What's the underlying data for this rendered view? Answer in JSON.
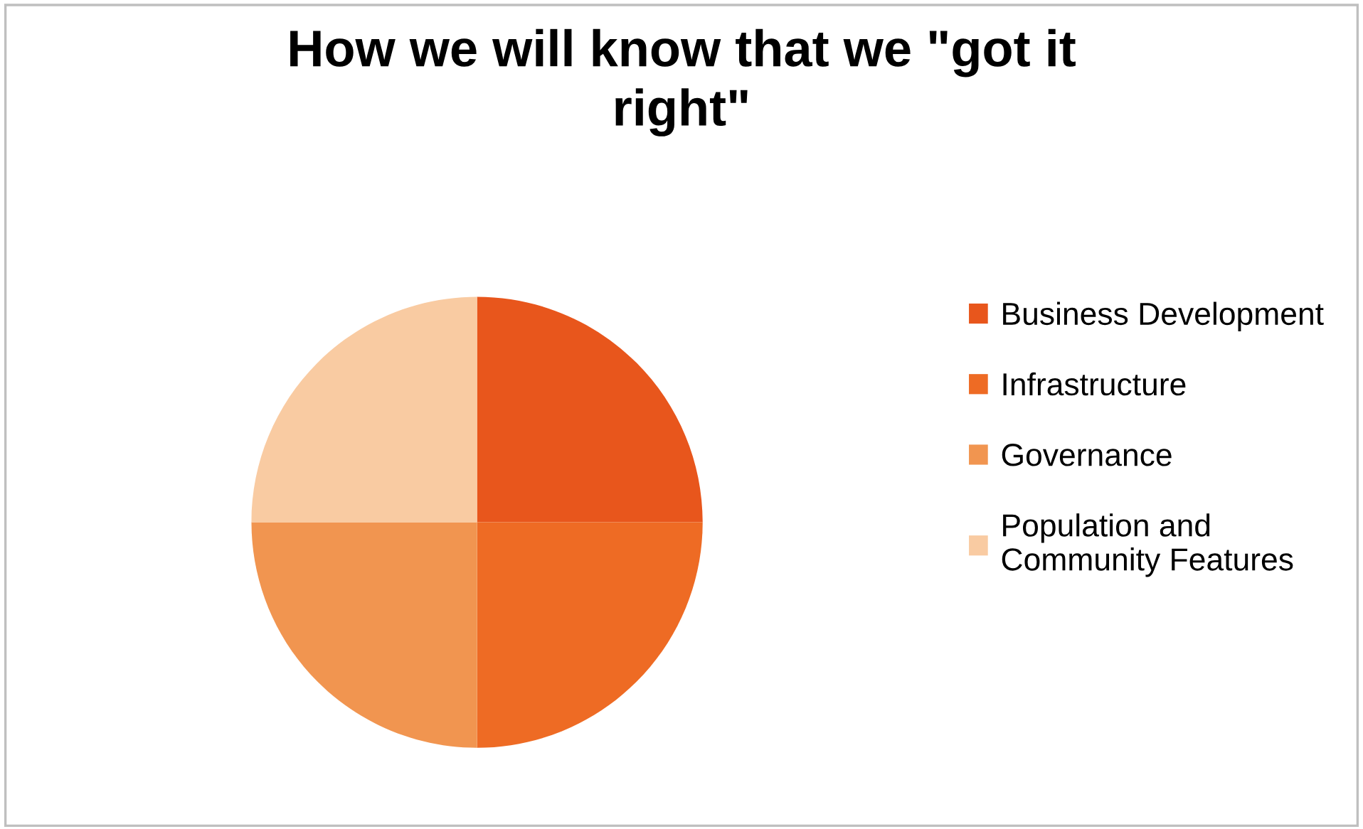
{
  "chart_data": {
    "type": "pie",
    "title": "How we will know that we \"got it\nright\"",
    "categories": [
      "Business Development",
      "Infrastructure",
      "Governance",
      "Population and\nCommunity Features"
    ],
    "values": [
      25,
      25,
      25,
      25
    ],
    "colors": [
      "#e8561c",
      "#ee6b24",
      "#f19550",
      "#f9cba2"
    ],
    "legend": "right"
  }
}
